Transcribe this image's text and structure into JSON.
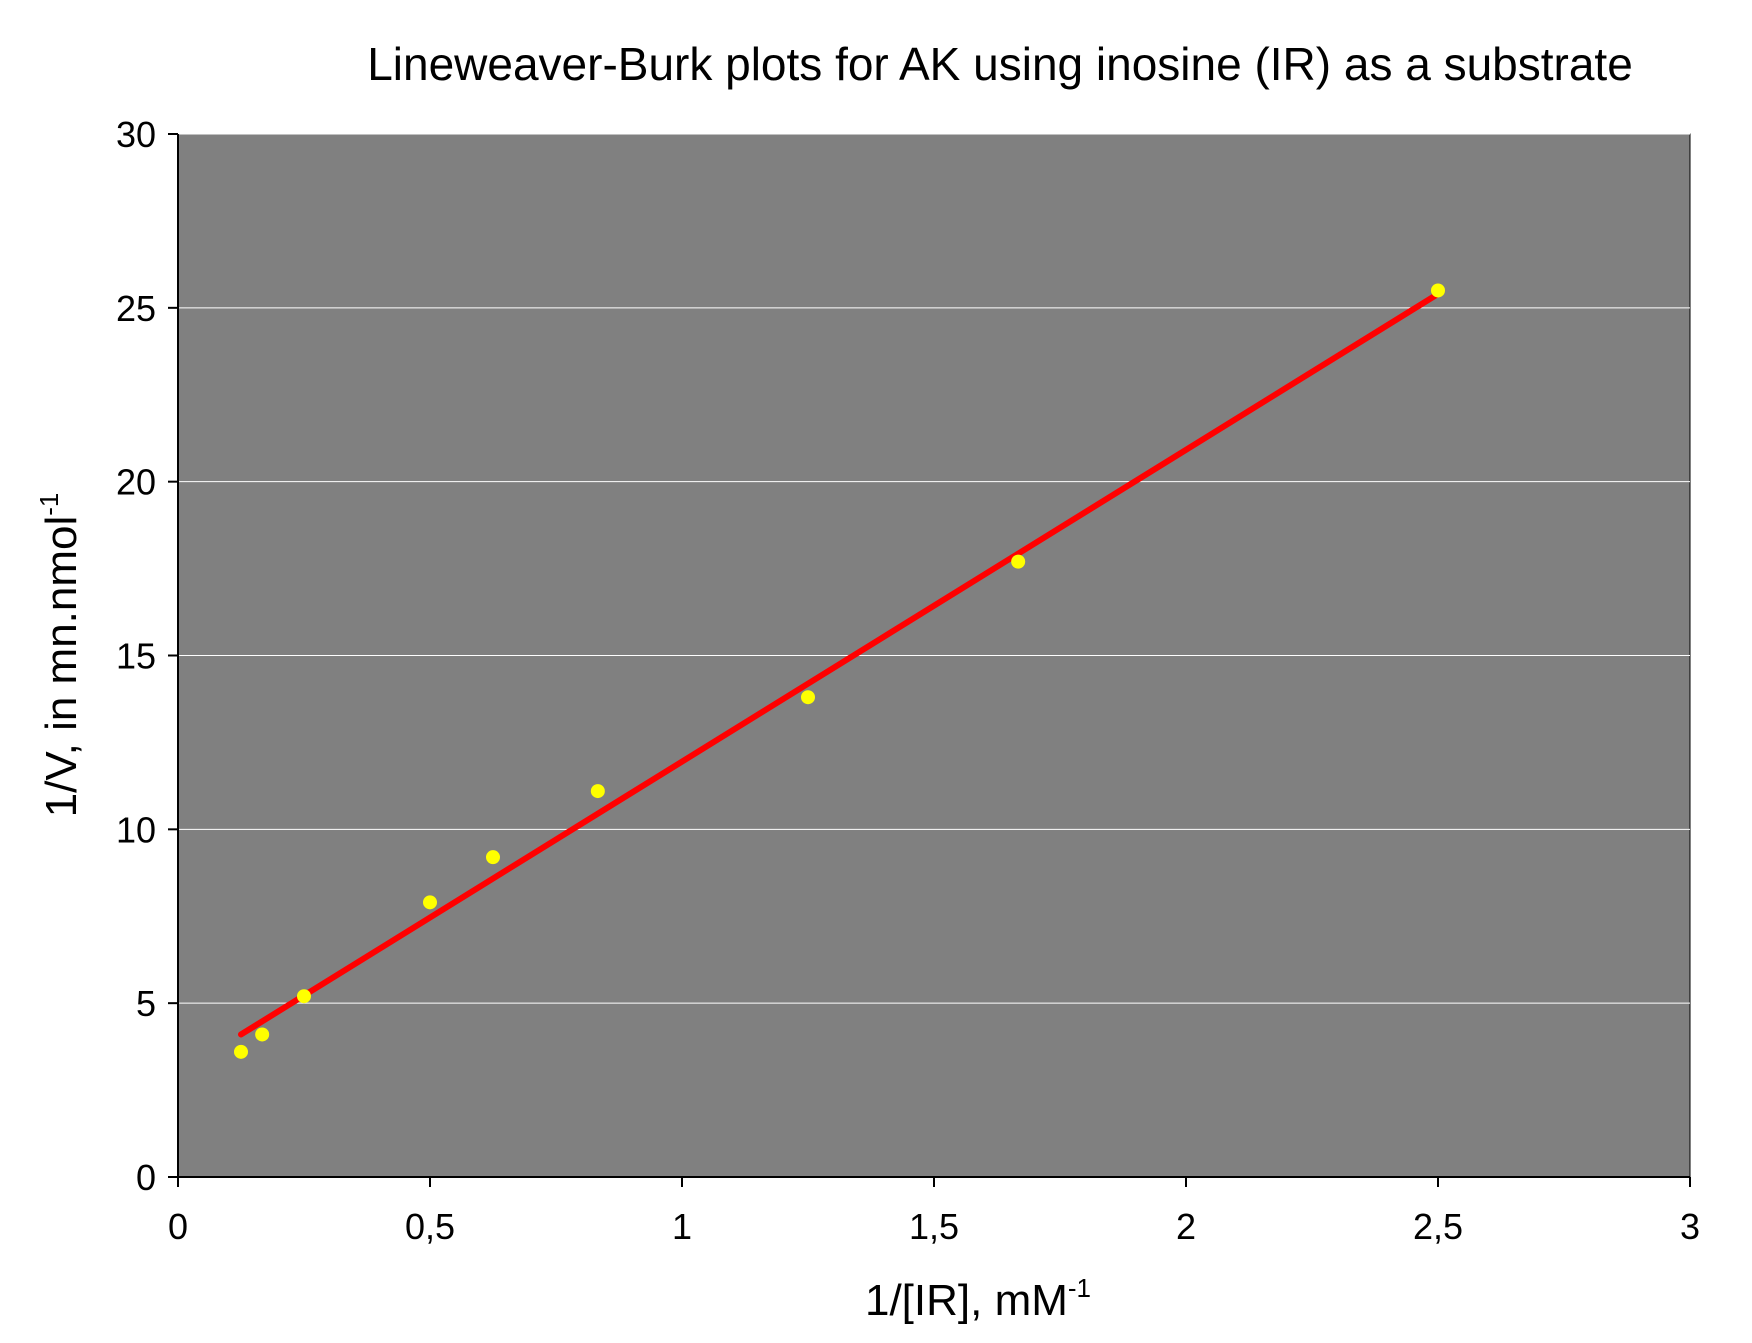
{
  "chart_data": {
    "type": "scatter",
    "title": "Lineweaver-Burk plots for AK using inosine (IR) as a substrate",
    "xlabel": {
      "base": "1/[IR], mM",
      "sup": "-1"
    },
    "ylabel": {
      "base": "1/V, in mn.nmol",
      "sup": "-1"
    },
    "xlim": [
      0,
      3
    ],
    "ylim": [
      0,
      30
    ],
    "x_ticks": [
      0,
      0.5,
      1,
      1.5,
      2,
      2.5,
      3
    ],
    "x_tick_labels": [
      "0",
      "0,5",
      "1",
      "1,5",
      "2",
      "2,5",
      "3"
    ],
    "y_ticks": [
      0,
      5,
      10,
      15,
      20,
      25,
      30
    ],
    "y_tick_labels": [
      "0",
      "5",
      "10",
      "15",
      "20",
      "25",
      "30"
    ],
    "grid": "horizontal",
    "series": [
      {
        "kind": "points",
        "color": "#ffff00",
        "x": [
          0.125,
          0.167,
          0.25,
          0.5,
          0.625,
          0.833,
          1.25,
          1.667,
          2.5
        ],
        "y": [
          3.6,
          4.1,
          5.2,
          7.9,
          9.2,
          11.1,
          13.8,
          17.7,
          25.5
        ]
      },
      {
        "kind": "trendline",
        "color": "#ff0000",
        "x": [
          0.125,
          2.5
        ],
        "y": [
          4.1,
          25.4
        ]
      }
    ],
    "plot_background": "#808080",
    "gridline_color": "#ffffff"
  }
}
